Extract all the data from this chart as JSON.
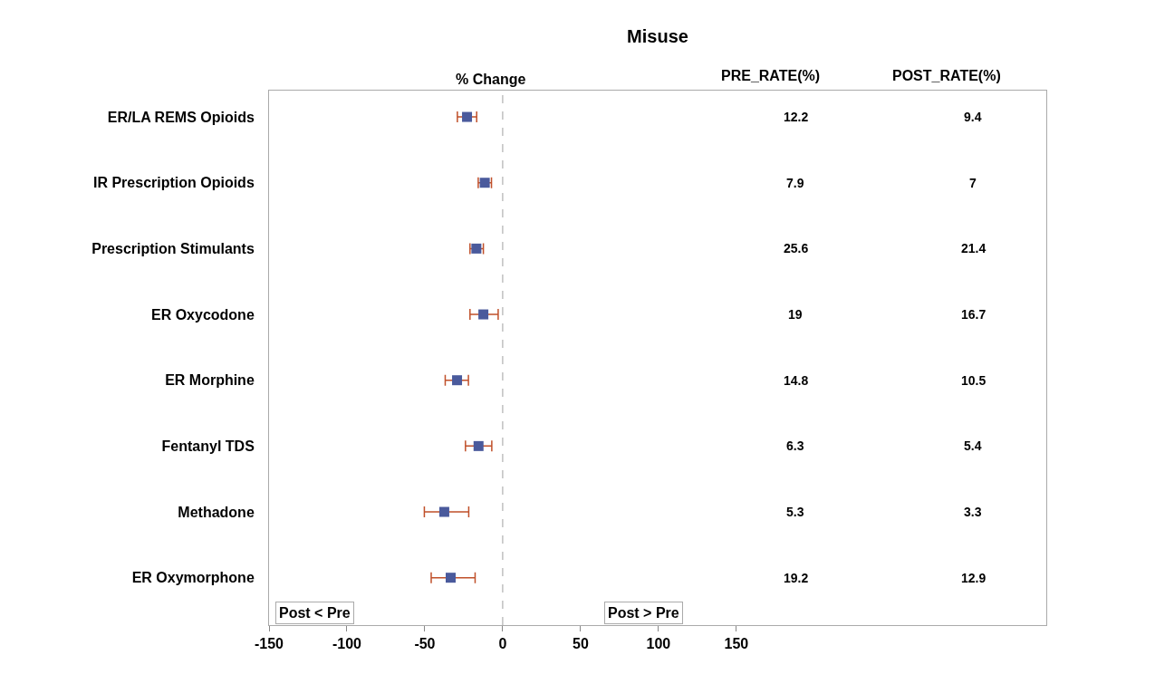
{
  "chart_data": {
    "type": "scatter",
    "title": "Misuse",
    "xlabel": "% Change",
    "categories": [
      "ER/LA REMS Opioids",
      "IR Prescription Opioids",
      "Prescription Stimulants",
      "ER Oxycodone",
      "ER Morphine",
      "Fentanyl TDS",
      "Methadone",
      "ER Oxymorphone"
    ],
    "orientation": "horizontal",
    "series": [
      {
        "color": "#4a5a9c",
        "values": [
          -22.9,
          -11.5,
          -16.9,
          -12.4,
          -29.3,
          -15.5,
          -37.5,
          -33.4
        ],
        "errors": [
          [
            -29.1,
            -16.7
          ],
          [
            -15.7,
            -7.2
          ],
          [
            -21.0,
            -12.4
          ],
          [
            -21.0,
            -2.9
          ],
          [
            -36.9,
            -22.0
          ],
          [
            -23.9,
            -7.0
          ],
          [
            -50.3,
            -21.8
          ],
          [
            -45.9,
            -17.7
          ]
        ]
      }
    ],
    "marker": "square",
    "xlim": [
      -150,
      349
    ],
    "xticks": [
      -150,
      -100,
      -50,
      0,
      50,
      100,
      150
    ],
    "ref_lines": [
      {
        "axis": "x",
        "value": 0,
        "color": "#a0a0a0",
        "line_style": "dashed"
      }
    ],
    "annotations": [
      "PRE_RATE(%)",
      "POST_RATE(%)",
      "12.2",
      "9.4",
      "7.9",
      "7",
      "25.6",
      "21.4",
      "19",
      "16.7",
      "14.8",
      "10.5",
      "6.3",
      "5.4",
      "5.3",
      "3.3",
      "19.2",
      "12.9",
      "Post < Pre",
      "Post > Pre"
    ]
  }
}
